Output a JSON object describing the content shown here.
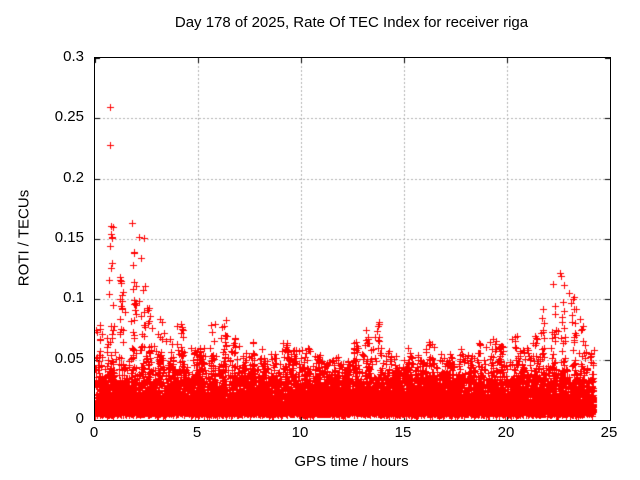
{
  "chart_data": {
    "type": "scatter",
    "title": "Day 178 of 2025, Rate Of TEC Index for receiver riga",
    "xlabel": "GPS time / hours",
    "ylabel": "ROTI / TECUs",
    "xlim": [
      0,
      25
    ],
    "ylim": [
      0,
      0.3
    ],
    "xticks": [
      0,
      5,
      10,
      15,
      20,
      25
    ],
    "xtick_labels": [
      "0",
      "5",
      "10",
      "15",
      "20",
      "25"
    ],
    "yticks": [
      0,
      0.05,
      0.1,
      0.15,
      0.2,
      0.25,
      0.3
    ],
    "ytick_labels": [
      "0",
      "0.05",
      "0.1",
      "0.15",
      "0.2",
      "0.25",
      "0.3"
    ],
    "grid": true,
    "legend": "none",
    "marker": "plus",
    "marker_color": "#ff0000",
    "grid_color": "#b0b0b0",
    "axis_color": "#000000",
    "background_color": "#ffffff",
    "data_x_range": [
      0,
      24.2
    ],
    "dense_band": {
      "bottom": 0.005,
      "typical_top": 0.05
    },
    "envelope_bins_halfhour": [
      [
        0.0,
        0.08
      ],
      [
        0.5,
        0.16
      ],
      [
        1.0,
        0.14
      ],
      [
        1.5,
        0.14
      ],
      [
        2.0,
        0.155
      ],
      [
        2.5,
        0.1
      ],
      [
        3.0,
        0.09
      ],
      [
        3.5,
        0.07
      ],
      [
        4.0,
        0.08
      ],
      [
        4.5,
        0.06
      ],
      [
        5.0,
        0.065
      ],
      [
        5.5,
        0.085
      ],
      [
        6.0,
        0.08
      ],
      [
        6.5,
        0.075
      ],
      [
        7.0,
        0.06
      ],
      [
        7.5,
        0.065
      ],
      [
        8.0,
        0.06
      ],
      [
        8.5,
        0.055
      ],
      [
        9.0,
        0.065
      ],
      [
        9.5,
        0.06
      ],
      [
        10.0,
        0.06
      ],
      [
        10.5,
        0.055
      ],
      [
        11.0,
        0.05
      ],
      [
        11.5,
        0.055
      ],
      [
        12.0,
        0.05
      ],
      [
        12.5,
        0.065
      ],
      [
        13.0,
        0.075
      ],
      [
        13.5,
        0.082
      ],
      [
        14.0,
        0.06
      ],
      [
        14.5,
        0.055
      ],
      [
        15.0,
        0.06
      ],
      [
        15.5,
        0.055
      ],
      [
        16.0,
        0.065
      ],
      [
        16.5,
        0.055
      ],
      [
        17.0,
        0.055
      ],
      [
        17.5,
        0.06
      ],
      [
        18.0,
        0.055
      ],
      [
        18.5,
        0.065
      ],
      [
        19.0,
        0.07
      ],
      [
        19.5,
        0.065
      ],
      [
        20.0,
        0.07
      ],
      [
        20.5,
        0.065
      ],
      [
        21.0,
        0.075
      ],
      [
        21.5,
        0.095
      ],
      [
        22.0,
        0.115
      ],
      [
        22.5,
        0.122
      ],
      [
        23.0,
        0.105
      ],
      [
        23.5,
        0.085
      ],
      [
        24.0,
        0.06
      ]
    ],
    "outliers": [
      [
        0.74,
        0.259
      ],
      [
        0.73,
        0.228
      ],
      [
        0.8,
        0.161
      ],
      [
        0.8,
        0.154
      ],
      [
        0.82,
        0.151
      ],
      [
        1.8,
        0.163
      ],
      [
        0.05,
        0.075
      ],
      [
        0.1,
        0.073
      ],
      [
        2.15,
        0.152
      ],
      [
        6.35,
        0.083
      ],
      [
        13.8,
        0.081
      ],
      [
        13.75,
        0.078
      ],
      [
        22.6,
        0.119
      ],
      [
        22.75,
        0.112
      ],
      [
        23.0,
        0.105
      ]
    ]
  }
}
